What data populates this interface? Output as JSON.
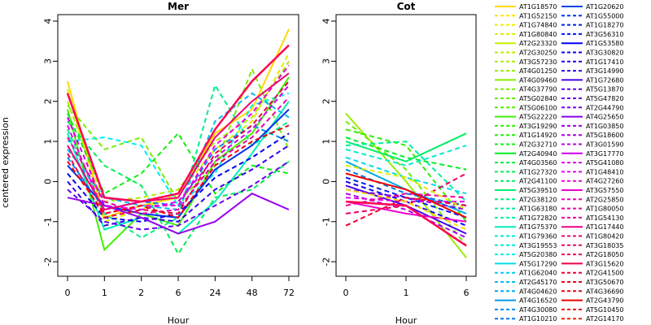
{
  "chart_data": {
    "type": "line",
    "ylabel": "centered expression",
    "ylim": [
      -2.2,
      4.0
    ],
    "yticks": [
      -2,
      -1,
      0,
      1,
      2,
      3,
      4
    ],
    "grid": false,
    "legend_placement": "right",
    "panels": [
      {
        "title": "Mer",
        "xlabel": "Hour",
        "x": [
          "0",
          "1",
          "2",
          "6",
          "24",
          "48",
          "72"
        ],
        "series": [
          {
            "values": [
              2.5,
              -0.9,
              -0.6,
              -0.4,
              1.2,
              1.8,
              3.8
            ]
          },
          {
            "values": [
              2.3,
              -1.0,
              -0.7,
              -0.3,
              0.8,
              1.5,
              3.2
            ]
          },
          {
            "values": [
              2.0,
              -0.5,
              -0.4,
              -0.2,
              1.0,
              1.6,
              3.0
            ]
          },
          {
            "values": [
              1.9,
              0.8,
              1.1,
              -0.5,
              0.4,
              2.8,
              0.8
            ]
          },
          {
            "values": [
              1.8,
              -1.7,
              -0.8,
              -1.1,
              0.5,
              1.2,
              2.6
            ]
          },
          {
            "values": [
              1.7,
              -0.3,
              0.2,
              1.2,
              -0.3,
              0.4,
              0.2
            ]
          },
          {
            "values": [
              1.5,
              0.4,
              -0.1,
              -1.8,
              -0.4,
              -0.2,
              0.5
            ]
          },
          {
            "values": [
              1.3,
              -0.8,
              -1.4,
              -0.9,
              2.4,
              0.9,
              1.5
            ]
          },
          {
            "values": [
              1.2,
              -1.2,
              -0.9,
              -1.3,
              -0.5,
              0.7,
              2.0
            ]
          },
          {
            "values": [
              1.0,
              1.1,
              0.9,
              -0.6,
              0.2,
              1.9,
              2.2
            ]
          },
          {
            "values": [
              0.8,
              -0.4,
              -0.6,
              -0.7,
              1.5,
              2.2,
              1.6
            ]
          },
          {
            "values": [
              0.6,
              -0.7,
              -0.5,
              -0.6,
              0.8,
              1.4,
              1.0
            ]
          },
          {
            "values": [
              0.4,
              -0.6,
              -0.8,
              -0.9,
              0.3,
              0.9,
              1.8
            ]
          },
          {
            "values": [
              0.2,
              -0.9,
              -1.0,
              -0.8,
              0.1,
              0.6,
              1.2
            ]
          },
          {
            "values": [
              0.0,
              -1.1,
              -0.9,
              -1.0,
              -0.2,
              0.3,
              0.9
            ]
          },
          {
            "values": [
              -0.2,
              -1.0,
              -1.2,
              -1.1,
              -0.6,
              -0.1,
              0.5
            ]
          },
          {
            "values": [
              -0.4,
              -0.6,
              -0.9,
              -1.3,
              -1.0,
              -0.3,
              -0.7
            ]
          },
          {
            "values": [
              1.6,
              -0.6,
              -0.7,
              -0.5,
              0.6,
              1.3,
              2.4
            ]
          },
          {
            "values": [
              1.4,
              -0.8,
              -0.6,
              -0.6,
              0.9,
              1.7,
              2.9
            ]
          },
          {
            "values": [
              1.1,
              -0.5,
              -0.8,
              -0.7,
              0.5,
              1.1,
              2.1
            ]
          },
          {
            "values": [
              0.9,
              -0.7,
              -0.5,
              -0.4,
              1.1,
              2.0,
              2.7
            ]
          },
          {
            "values": [
              0.7,
              -0.9,
              -0.7,
              -0.8,
              0.7,
              1.4,
              2.5
            ]
          },
          {
            "values": [
              0.5,
              -0.8,
              -0.6,
              -0.9,
              0.4,
              1.0,
              1.4
            ]
          },
          {
            "values": [
              2.2,
              -0.4,
              -0.5,
              -0.3,
              1.3,
              2.5,
              3.4
            ]
          }
        ]
      },
      {
        "title": "Cot",
        "xlabel": "Hour",
        "x": [
          "0",
          "1",
          "6"
        ],
        "series": [
          {
            "values": [
              1.7,
              0.0,
              -1.9
            ]
          },
          {
            "values": [
              1.5,
              0.3,
              -1.6
            ]
          },
          {
            "values": [
              1.3,
              0.9,
              -1.0
            ]
          },
          {
            "values": [
              1.1,
              0.6,
              0.3
            ]
          },
          {
            "values": [
              1.0,
              0.5,
              1.2
            ]
          },
          {
            "values": [
              0.9,
              1.0,
              -0.5
            ]
          },
          {
            "values": [
              0.8,
              0.4,
              0.9
            ]
          },
          {
            "values": [
              0.6,
              0.1,
              -0.3
            ]
          },
          {
            "values": [
              0.5,
              -0.2,
              -0.8
            ]
          },
          {
            "values": [
              0.3,
              -0.3,
              -0.6
            ]
          },
          {
            "values": [
              0.1,
              -0.4,
              -0.9
            ]
          },
          {
            "values": [
              0.0,
              -0.5,
              -1.1
            ]
          },
          {
            "values": [
              -0.1,
              -0.6,
              -1.3
            ]
          },
          {
            "values": [
              -0.2,
              -0.4,
              -0.7
            ]
          },
          {
            "values": [
              -0.3,
              -0.7,
              -1.4
            ]
          },
          {
            "values": [
              -0.4,
              -0.5,
              -0.5
            ]
          },
          {
            "values": [
              -0.5,
              -0.8,
              -1.0
            ]
          },
          {
            "values": [
              -0.6,
              -0.3,
              -0.4
            ]
          },
          {
            "values": [
              -0.8,
              -0.6,
              0.2
            ]
          },
          {
            "values": [
              -1.1,
              -0.4,
              -0.6
            ]
          },
          {
            "values": [
              0.2,
              -0.2,
              -0.9
            ]
          },
          {
            "values": [
              -0.2,
              -0.5,
              -1.2
            ]
          },
          {
            "values": [
              0.4,
              0.1,
              -0.7
            ]
          },
          {
            "values": [
              -0.5,
              -0.6,
              -1.6
            ]
          }
        ]
      }
    ],
    "legend": {
      "entries_col1": [
        "AT1G18570",
        "AT1G52150",
        "AT1G74840",
        "AT1G80840",
        "AT2G23320",
        "AT2G30250",
        "AT3G57230",
        "AT4G01250",
        "AT4G09460",
        "AT4G37790",
        "AT5G02840",
        "AT5G06100",
        "AT5G22220",
        "AT3G19290",
        "AT1G14920",
        "AT2G32710",
        "AT2G40940",
        "AT4G03560",
        "AT1G27320",
        "AT2G41100",
        "AT5G39510",
        "AT2G38120",
        "AT1G63180",
        "AT1G72820",
        "AT1G75370",
        "AT1G79360",
        "AT3G19553",
        "AT5G20380",
        "AT5G17290",
        "AT1G62040",
        "AT2G45170",
        "AT4G04620",
        "AT4G16520",
        "AT4G30080",
        "AT1G10210"
      ],
      "entries_col2": [
        "AT1G20620",
        "AT1G55000",
        "AT1G18270",
        "AT3G56310",
        "AT1G53580",
        "AT3G30820",
        "AT1G17410",
        "AT3G14990",
        "AT1G72680",
        "AT5G13870",
        "AT5G47820",
        "AT2G44790",
        "AT4G25650",
        "AT1G03850",
        "AT5G18600",
        "AT3G01590",
        "AT3G17770",
        "AT5G41080",
        "AT1G48410",
        "AT4G27260",
        "AT3G57550",
        "AT2G25850",
        "AT1G80050",
        "AT1G54130",
        "AT1G17440",
        "AT1G80420",
        "AT3G18035",
        "AT2G18050",
        "AT3G15620",
        "AT2G41500",
        "AT3G50670",
        "AT4G36690",
        "AT2G43790",
        "AT5G10450",
        "AT2G14170"
      ],
      "colors_col1": [
        "#FFD700",
        "#FFE100",
        "#EEEE00",
        "#DDEE00",
        "#CCEE00",
        "#BBEE00",
        "#AAEE00",
        "#99EE00",
        "#88EE00",
        "#77EE00",
        "#66EE00",
        "#55EE00",
        "#44EE00",
        "#33EE00",
        "#22EE00",
        "#11EE11",
        "#00EE22",
        "#00EE44",
        "#00EE55",
        "#00EE66",
        "#00EE77",
        "#00EE88",
        "#00EE99",
        "#00EEAA",
        "#00EEBB",
        "#00EECC",
        "#00EEDD",
        "#00EEEE",
        "#00DDEE",
        "#00CCEE",
        "#00BBEE",
        "#00AAEE",
        "#0099EE",
        "#0088EE",
        "#0077EE"
      ],
      "colors_col2": [
        "#0044EE",
        "#0033EE",
        "#0022EE",
        "#0011EE",
        "#0000EE",
        "#1100EE",
        "#2200EE",
        "#3300EE",
        "#4400EE",
        "#5500EE",
        "#6600EE",
        "#7700EE",
        "#8800EE",
        "#9900EE",
        "#AA00EE",
        "#BB00EE",
        "#CC00EE",
        "#DD00EE",
        "#EE00EE",
        "#EE00DD",
        "#EE00CC",
        "#EE00BB",
        "#EE00AA",
        "#EE0099",
        "#EE0088",
        "#EE0077",
        "#EE0066",
        "#EE0055",
        "#EE0044",
        "#EE0033",
        "#EE0022",
        "#EE0011",
        "#EE0000",
        "#EE1100",
        "#EE2200"
      ],
      "dashed_pattern": [
        false,
        true,
        true,
        true
      ]
    }
  }
}
